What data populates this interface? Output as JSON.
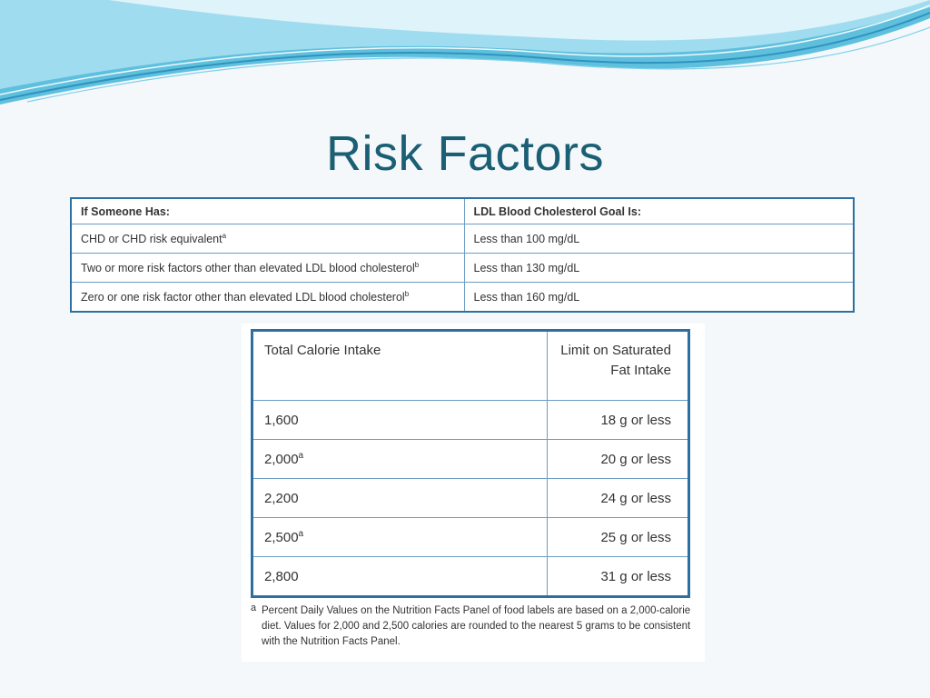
{
  "slide": {
    "title": "Risk Factors"
  },
  "ldl_table": {
    "headers": [
      "If Someone Has:",
      "LDL Blood Cholesterol Goal Is:"
    ],
    "rows": [
      {
        "condition": "CHD or CHD risk equivalent",
        "mark": "a",
        "goal": "Less than 100 mg/dL"
      },
      {
        "condition": "Two or more risk factors other than elevated LDL blood cholesterol",
        "mark": "b",
        "goal": "Less than 130 mg/dL"
      },
      {
        "condition": "Zero or one risk factor other than elevated LDL blood cholesterol",
        "mark": "b",
        "goal": "Less than 160 mg/dL"
      }
    ]
  },
  "calorie_table": {
    "headers": [
      "Total Calorie Intake",
      "Limit on Saturated Fat Intake"
    ],
    "rows": [
      {
        "calories": "1,600",
        "mark": "",
        "limit": "18 g or less"
      },
      {
        "calories": "2,000",
        "mark": "a",
        "limit": "20 g or less"
      },
      {
        "calories": "2,200",
        "mark": "",
        "limit": "24 g or less"
      },
      {
        "calories": "2,500",
        "mark": "a",
        "limit": "25 g or less"
      },
      {
        "calories": "2,800",
        "mark": "",
        "limit": "31 g or less"
      }
    ],
    "footnote_mark": "a",
    "footnote": "Percent Daily Values on the Nutrition Facts Panel of food labels are based on a 2,000-calorie diet. Values for 2,000 and 2,500 calories are rounded to the nearest 5 grams to be consistent with the Nutrition Facts Panel."
  },
  "colors": {
    "title": "#1a5f73",
    "table_border": "#2c6fa0",
    "wave_light": "#bfe7f3",
    "wave_dark": "#3aa8cf"
  }
}
